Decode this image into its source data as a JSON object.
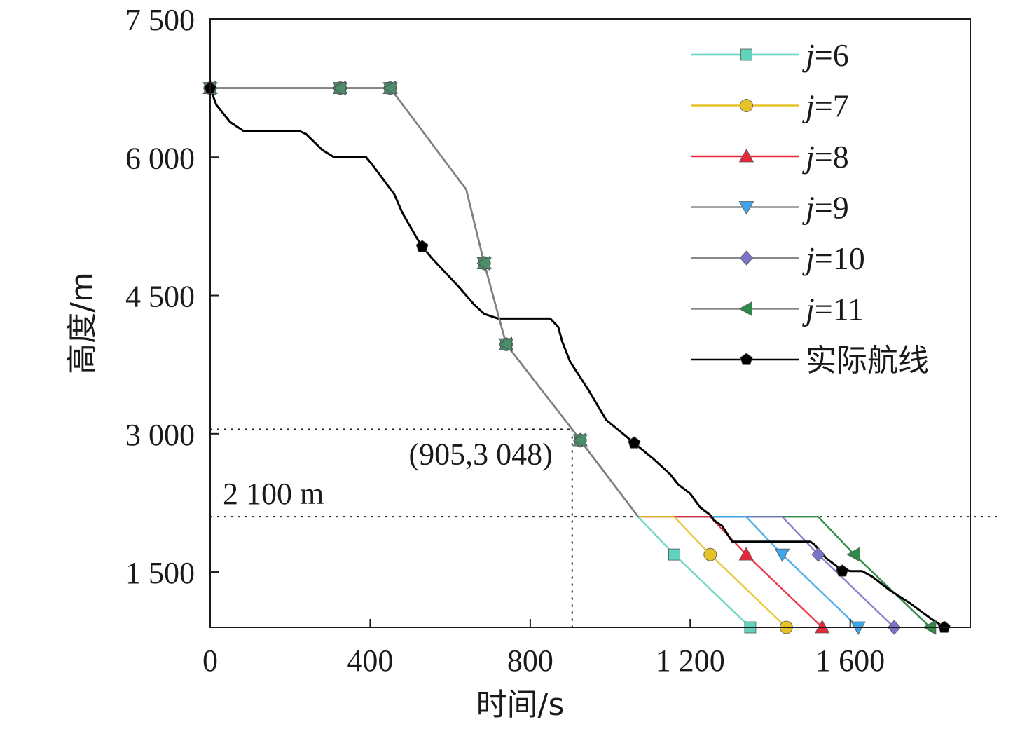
{
  "chart_data": {
    "type": "line",
    "xlabel": "时间/s",
    "ylabel": "高度/m",
    "xlim": [
      0,
      1900
    ],
    "ylim": [
      900,
      7500
    ],
    "x_ticks": [
      {
        "value": 0,
        "label": "0"
      },
      {
        "value": 400,
        "label": "400"
      },
      {
        "value": 800,
        "label": "800"
      },
      {
        "value": 1200,
        "label": "1 200"
      },
      {
        "value": 1600,
        "label": "1 600"
      }
    ],
    "y_ticks": [
      {
        "value": 1500,
        "label": "1 500"
      },
      {
        "value": 3000,
        "label": "3 000"
      },
      {
        "value": 4500,
        "label": "4 500"
      },
      {
        "value": 6000,
        "label": "6 000"
      },
      {
        "value": 7500,
        "label": "7 500"
      }
    ],
    "legend_position": "top-right",
    "series": [
      {
        "name": "j=6",
        "legend_prefix": "j",
        "legend_suffix": "=6",
        "color": "#5fd3bc",
        "marker": "square",
        "x": [
          0,
          325,
          450,
          640,
          685,
          740,
          905,
          925,
          1070,
          1160,
          1350
        ],
        "y": [
          6750,
          6750,
          6750,
          5650,
          4850,
          3970,
          3048,
          2930,
          2100,
          1690,
          900
        ]
      },
      {
        "name": "j=7",
        "legend_prefix": "j",
        "legend_suffix": "=7",
        "color": "#e6c229",
        "marker": "circle",
        "x": [
          0,
          325,
          450,
          640,
          685,
          740,
          905,
          925,
          1070,
          1160,
          1250,
          1440
        ],
        "y": [
          6750,
          6750,
          6750,
          5650,
          4850,
          3970,
          3048,
          2930,
          2100,
          2100,
          1690,
          900
        ]
      },
      {
        "name": "j=8",
        "legend_prefix": "j",
        "legend_suffix": "=8",
        "color": "#e8283a",
        "marker": "triangle-up",
        "x": [
          0,
          325,
          450,
          640,
          685,
          740,
          905,
          925,
          1070,
          1250,
          1340,
          1530
        ],
        "y": [
          6750,
          6750,
          6750,
          5650,
          4850,
          3970,
          3048,
          2930,
          2100,
          2100,
          1690,
          900
        ]
      },
      {
        "name": "j=9",
        "legend_prefix": "j",
        "legend_suffix": "=9",
        "color": "#3ea6e8",
        "marker": "triangle-down",
        "x": [
          0,
          325,
          450,
          640,
          685,
          740,
          905,
          925,
          1070,
          1340,
          1430,
          1620
        ],
        "y": [
          6750,
          6750,
          6750,
          5650,
          4850,
          3970,
          3048,
          2930,
          2100,
          2100,
          1690,
          900
        ]
      },
      {
        "name": "j=10",
        "legend_prefix": "j",
        "legend_suffix": "=10",
        "color": "#7b74c9",
        "marker": "diamond",
        "x": [
          0,
          325,
          450,
          640,
          685,
          740,
          905,
          925,
          1070,
          1430,
          1520,
          1710
        ],
        "y": [
          6750,
          6750,
          6750,
          5650,
          4850,
          3970,
          3048,
          2930,
          2100,
          2100,
          1690,
          900
        ]
      },
      {
        "name": "j=11",
        "legend_prefix": "j",
        "legend_suffix": "=11",
        "color": "#2f8a4a",
        "marker": "triangle-left",
        "x": [
          0,
          325,
          450,
          640,
          685,
          740,
          905,
          925,
          1070,
          1520,
          1610,
          1800
        ],
        "y": [
          6750,
          6750,
          6750,
          5650,
          4850,
          3970,
          3048,
          2930,
          2100,
          2100,
          1690,
          900
        ]
      },
      {
        "name": "实际航线",
        "legend_prefix": "实际航线",
        "legend_suffix": "",
        "color": "#000000",
        "marker": "pentagon",
        "x": [
          0,
          15,
          50,
          85,
          225,
          240,
          280,
          310,
          390,
          405,
          460,
          480,
          525,
          555,
          620,
          660,
          685,
          720,
          850,
          870,
          880,
          900,
          945,
          990,
          1060,
          1110,
          1150,
          1170,
          1200,
          1225,
          1250,
          1260,
          1280,
          1305,
          1500,
          1510,
          1540,
          1570,
          1600,
          1610,
          1630,
          1655,
          1700,
          1750,
          1800,
          1835
        ],
        "y": [
          6750,
          6570,
          6380,
          6280,
          6280,
          6250,
          6080,
          6000,
          6000,
          5920,
          5600,
          5400,
          5060,
          4900,
          4600,
          4400,
          4300,
          4250,
          4250,
          4160,
          4000,
          3780,
          3480,
          3150,
          2900,
          2720,
          2560,
          2450,
          2350,
          2200,
          2120,
          2060,
          2000,
          1830,
          1830,
          1800,
          1650,
          1550,
          1510,
          1510,
          1510,
          1450,
          1300,
          1160,
          1000,
          900
        ],
        "marker_points": [
          [
            0,
            6750
          ],
          [
            530,
            5030
          ],
          [
            1060,
            2900
          ],
          [
            1580,
            1510
          ],
          [
            1835,
            900
          ]
        ]
      }
    ],
    "annotations": [
      {
        "label": "(905,3 048)",
        "x": 905,
        "y": 3048
      },
      {
        "label": "2 100 m",
        "y": 2100
      }
    ]
  }
}
